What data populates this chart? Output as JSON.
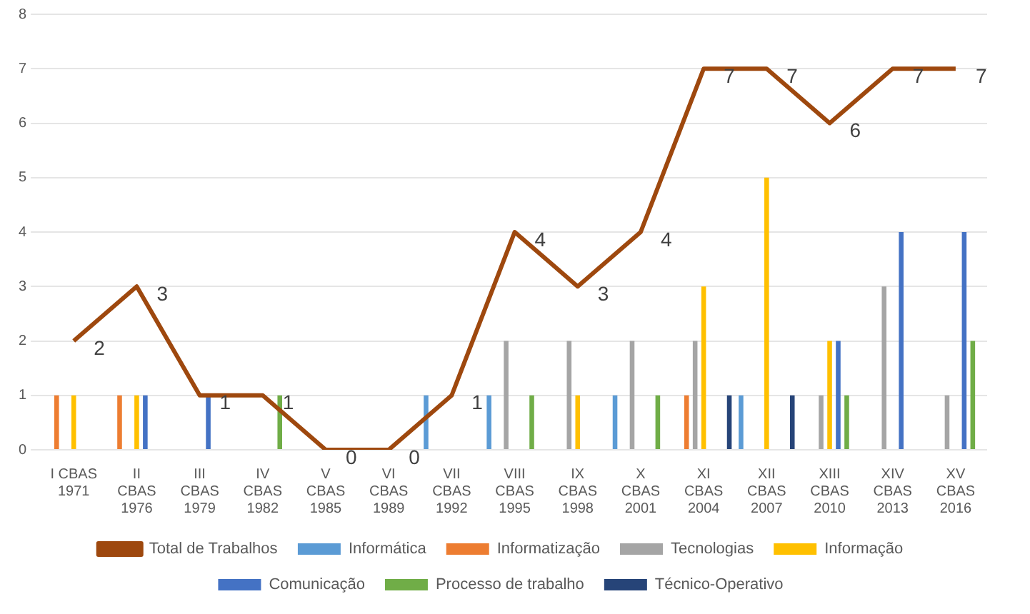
{
  "chart_data": {
    "type": "bar",
    "categories": [
      "I CBAS\n1971",
      "II\nCBAS\n1976",
      "III\nCBAS\n1979",
      "IV\nCBAS\n1982",
      "V\nCBAS\n1985",
      "VI\nCBAS\n1989",
      "VII\nCBAS\n1992",
      "VIII\nCBAS\n1995",
      "IX\nCBAS\n1998",
      "X\nCBAS\n2001",
      "XI\nCBAS\n2004",
      "XII\nCBAS\n2007",
      "XIII\nCBAS\n2010",
      "XIV\nCBAS\n2013",
      "XV\nCBAS\n2016"
    ],
    "series": [
      {
        "name": "Informática",
        "color": "#5b9bd5",
        "values": [
          null,
          null,
          null,
          null,
          null,
          null,
          1,
          1,
          null,
          1,
          null,
          1,
          null,
          null,
          null
        ]
      },
      {
        "name": "Informatização",
        "color": "#ed7d31",
        "values": [
          1,
          1,
          null,
          null,
          null,
          null,
          null,
          null,
          null,
          null,
          1,
          null,
          null,
          null,
          null
        ]
      },
      {
        "name": "Tecnologias",
        "color": "#a5a5a5",
        "values": [
          null,
          null,
          null,
          null,
          null,
          null,
          null,
          2,
          2,
          2,
          2,
          null,
          1,
          3,
          1
        ]
      },
      {
        "name": "Informação",
        "color": "#ffc000",
        "values": [
          1,
          1,
          null,
          null,
          null,
          null,
          null,
          null,
          1,
          null,
          3,
          5,
          2,
          null,
          null
        ]
      },
      {
        "name": "Comunicação",
        "color": "#4472c4",
        "values": [
          null,
          1,
          1,
          null,
          null,
          null,
          null,
          null,
          null,
          null,
          null,
          null,
          2,
          4,
          4
        ]
      },
      {
        "name": "Processo de trabalho",
        "color": "#70ad47",
        "values": [
          null,
          null,
          null,
          1,
          null,
          null,
          null,
          1,
          null,
          1,
          null,
          null,
          1,
          null,
          2
        ]
      },
      {
        "name": "Técnico-Operativo",
        "color": "#264478",
        "values": [
          null,
          null,
          null,
          null,
          null,
          null,
          null,
          null,
          null,
          null,
          1,
          1,
          null,
          null,
          null
        ]
      },
      {
        "name": "Total de Trabalhos",
        "type": "line",
        "color": "#9e480e",
        "values": [
          2,
          3,
          1,
          1,
          0,
          0,
          1,
          4,
          3,
          4,
          7,
          7,
          6,
          7,
          7
        ],
        "value_labels": [
          "2",
          "3",
          "1",
          "1",
          "0",
          "0",
          "1",
          "4",
          "3",
          "4",
          "7",
          "7",
          "6",
          "7",
          "7"
        ]
      }
    ],
    "ylim": [
      0,
      8
    ],
    "yticks": [
      0,
      1,
      2,
      3,
      4,
      5,
      6,
      7,
      8
    ],
    "grid": "y",
    "legend": "bottom",
    "marker": "none"
  }
}
